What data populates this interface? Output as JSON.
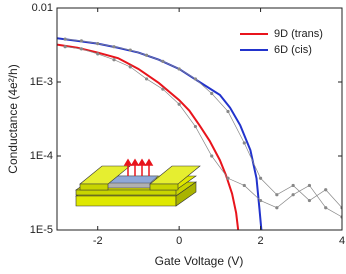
{
  "chart_data": {
    "type": "line",
    "x_label": "Gate Voltage  (V)",
    "y_label": "Conductance  (4e²/h)",
    "xlim": [
      -3,
      4
    ],
    "xticks": [
      -2,
      0,
      2,
      4
    ],
    "ylim": [
      1e-05,
      0.01
    ],
    "log_y": true,
    "yticks": [
      {
        "value": 0.01,
        "label": "0.01"
      },
      {
        "value": 0.001,
        "label": "1E-3"
      },
      {
        "value": 0.0001,
        "label": "1E-4"
      },
      {
        "value": 1e-05,
        "label": "1E-5"
      }
    ],
    "legend": "upper right",
    "series": [
      {
        "name": "9D (trans)",
        "color": "#e8141c",
        "marker": false,
        "x": [
          -3,
          -2.5,
          -2,
          -1.5,
          -1,
          -0.5,
          0,
          0.25,
          0.5,
          0.75,
          1,
          1.15,
          1.3,
          1.4,
          1.45
        ],
        "values": [
          0.0032,
          0.0029,
          0.0025,
          0.0021,
          0.0015,
          0.00097,
          0.00057,
          0.00041,
          0.00026,
          0.00016,
          8.8e-05,
          5.5e-05,
          3.1e-05,
          1.7e-05,
          1e-05
        ]
      },
      {
        "name": "6D (cis)",
        "color": "#2233cc",
        "marker": false,
        "x": [
          -3,
          -2.5,
          -2,
          -1.5,
          -1,
          -0.5,
          0,
          0.5,
          1,
          1.25,
          1.5,
          1.75,
          1.9,
          1.97,
          2.02
        ],
        "values": [
          0.0039,
          0.0036,
          0.0033,
          0.0029,
          0.0025,
          0.002,
          0.0015,
          0.001,
          0.00067,
          0.00045,
          0.00026,
          0.00012,
          5e-05,
          2e-05,
          1e-05
        ]
      },
      {
        "color": "#888888",
        "marker": true,
        "x": [
          -2.8,
          -2.4,
          -2,
          -1.6,
          -1.2,
          -0.8,
          -0.4,
          0,
          0.4,
          0.8,
          1.2,
          1.6,
          2,
          2.4,
          2.8,
          3.2,
          3.6,
          4
        ],
        "values": [
          0.0038,
          0.0036,
          0.0033,
          0.003,
          0.0027,
          0.0023,
          0.0019,
          0.0015,
          0.0011,
          0.0007,
          0.0004,
          0.00015,
          5e-05,
          3e-05,
          4e-05,
          2.5e-05,
          3.5e-05,
          2e-05
        ]
      },
      {
        "color": "#888888",
        "marker": true,
        "x": [
          -2.8,
          -2.4,
          -2,
          -1.6,
          -1.2,
          -0.8,
          -0.4,
          0,
          0.4,
          0.8,
          1.2,
          1.6,
          2,
          2.4,
          2.8,
          3.2,
          3.6,
          4
        ],
        "values": [
          0.003,
          0.0028,
          0.0024,
          0.002,
          0.0016,
          0.0011,
          0.0008,
          0.0005,
          0.00025,
          0.0001,
          5e-05,
          4e-05,
          2.5e-05,
          2e-05,
          3e-05,
          4e-05,
          2e-05,
          1.5e-05
        ]
      }
    ]
  }
}
